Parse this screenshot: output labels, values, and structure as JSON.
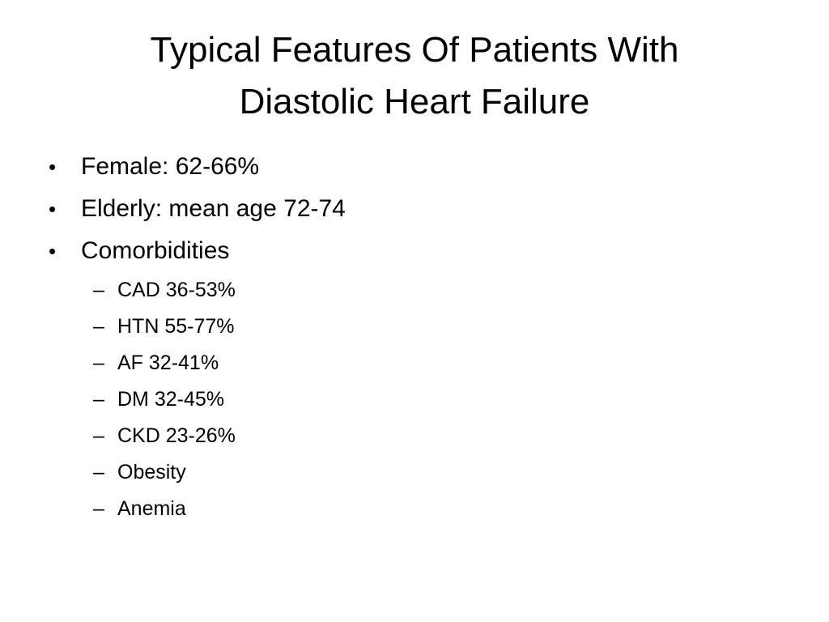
{
  "slide": {
    "title_line1": "Typical Features Of Patients With",
    "title_line2": "Diastolic Heart Failure",
    "bullets": [
      {
        "text": "Female: 62-66%"
      },
      {
        "text": "Elderly: mean age 72-74"
      },
      {
        "text": "Comorbidities"
      }
    ],
    "sub_bullets": [
      {
        "text": "CAD 36-53%"
      },
      {
        "text": "HTN 55-77%"
      },
      {
        "text": "AF 32-41%"
      },
      {
        "text": "DM 32-45%"
      },
      {
        "text": "CKD 23-26%"
      },
      {
        "text": "Obesity"
      },
      {
        "text": "Anemia"
      }
    ],
    "bullet_glyph": "•",
    "dash_glyph": "–"
  }
}
